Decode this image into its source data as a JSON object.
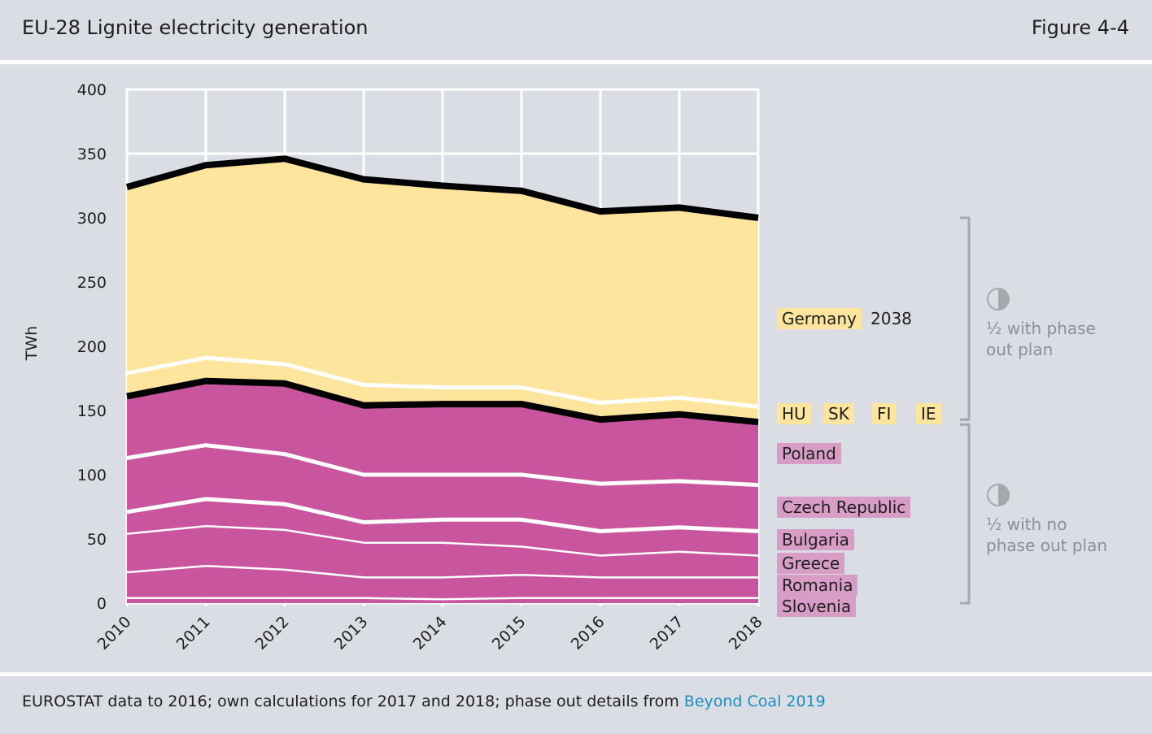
{
  "header": {
    "title": "EU-28 Lignite electricity generation",
    "figure_label": "Figure 4-4"
  },
  "footer": {
    "source_text": "EUROSTAT data to 2016; own calculations for 2017 and 2018; phase out details from ",
    "link_text": "Beyond Coal 2019"
  },
  "colors": {
    "background": "#dadde3",
    "phase_out_area": "#fde59d",
    "no_phase_out_area": "#c9559f",
    "total_line": "#000000",
    "separator": "#ffffff",
    "note_text": "#8b9096",
    "link": "#1c8fc2"
  },
  "chart_data": {
    "type": "area",
    "stacked": true,
    "xlabel": "",
    "ylabel": "TWh",
    "ylim": [
      0,
      400
    ],
    "yticks": [
      0,
      50,
      100,
      150,
      200,
      250,
      300,
      350,
      400
    ],
    "grid": true,
    "categories": [
      "2010",
      "2011",
      "2012",
      "2013",
      "2014",
      "2015",
      "2016",
      "2017",
      "2018"
    ],
    "series": [
      {
        "name": "Slovenia",
        "group": "no_phase_out",
        "values": [
          4,
          4,
          4,
          4,
          3,
          4,
          4,
          4,
          4
        ]
      },
      {
        "name": "Romania",
        "group": "no_phase_out",
        "values": [
          20,
          25,
          22,
          16,
          17,
          18,
          16,
          16,
          16
        ]
      },
      {
        "name": "Greece",
        "group": "no_phase_out",
        "values": [
          30,
          31,
          31,
          27,
          27,
          22,
          17,
          20,
          17
        ]
      },
      {
        "name": "Bulgaria",
        "group": "no_phase_out",
        "values": [
          17,
          21,
          20,
          16,
          18,
          21,
          19,
          19,
          19
        ]
      },
      {
        "name": "Czech Republic",
        "group": "no_phase_out",
        "values": [
          42,
          42,
          39,
          37,
          35,
          35,
          37,
          36,
          36
        ]
      },
      {
        "name": "Poland",
        "group": "no_phase_out",
        "values": [
          48,
          50,
          55,
          54,
          55,
          55,
          50,
          52,
          49
        ]
      },
      {
        "name": "HU SK FI IE",
        "group": "phase_out",
        "values": [
          18,
          18,
          15,
          16,
          13,
          13,
          13,
          13,
          12
        ]
      },
      {
        "name": "Germany",
        "group": "phase_out",
        "values": [
          145,
          150,
          160,
          160,
          157,
          153,
          149,
          148,
          147
        ]
      }
    ],
    "totals": [
      324,
      341,
      346,
      330,
      325,
      321,
      305,
      308,
      300
    ],
    "legend": {
      "yellow_labels": {
        "germany": "Germany",
        "hu": "HU",
        "sk": "SK",
        "fi": "FI",
        "ie": "IE"
      },
      "germany_year": "2038",
      "pink_labels": {
        "poland": "Poland",
        "czech": "Czech Republic",
        "bulgaria": "Bulgaria",
        "greece": "Greece",
        "romania": "Romania",
        "slovenia": "Slovenia"
      }
    },
    "annotations": {
      "with_plan": {
        "line1": "½ with phase",
        "line2": "out plan"
      },
      "no_plan": {
        "line1": "½ with no",
        "line2": "phase out plan"
      }
    }
  }
}
